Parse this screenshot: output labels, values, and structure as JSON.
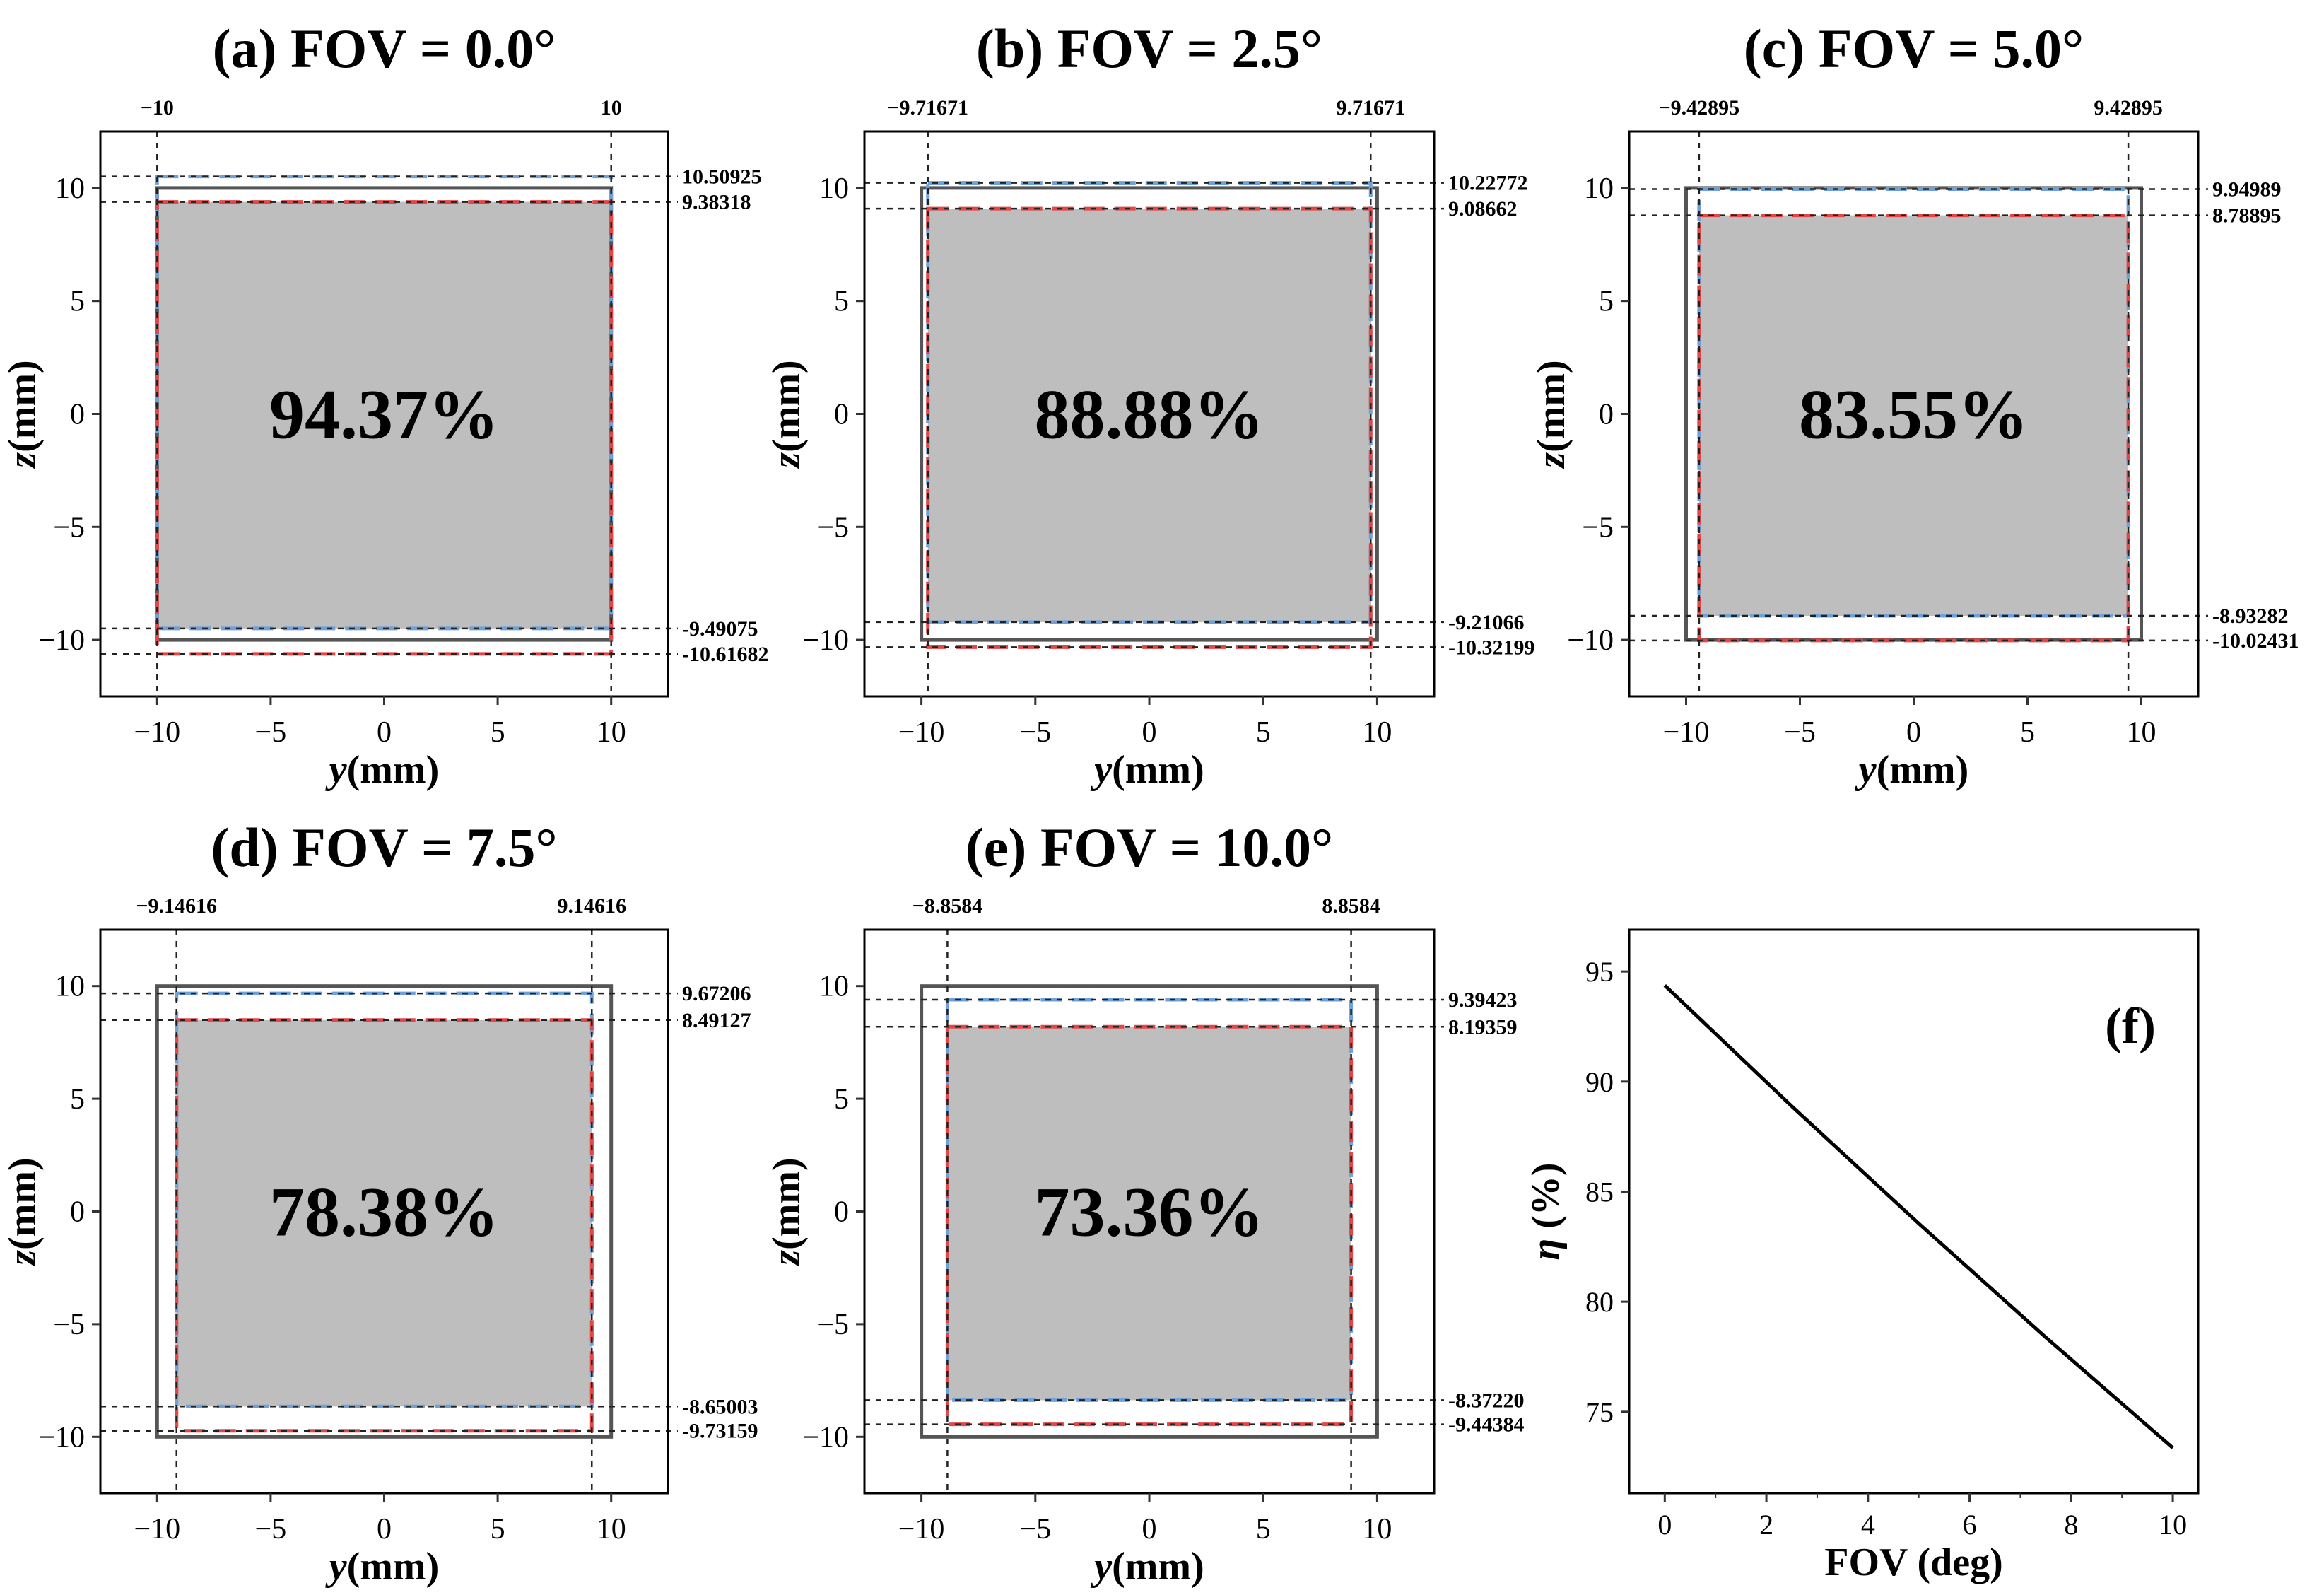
{
  "figure": {
    "tick_color": "#333333",
    "colors": {
      "frame": "#555555",
      "fill": "#bebebe",
      "blue": "#6fa0d8",
      "red": "#e04848",
      "guide": "#222222",
      "axis": "#000000"
    },
    "ytick_labels": [
      "−10",
      "−5",
      "0",
      "5",
      "10"
    ],
    "xtick_labels": [
      "−10",
      "−5",
      "0",
      "5",
      "10"
    ]
  },
  "chart_data": [
    {
      "id": "a",
      "type": "area",
      "title": "(a) FOV = 0.0°",
      "xlabel_italic": "y",
      "xlabel_unit": "(mm)",
      "ylabel_italic": "z",
      "ylabel_unit": "(mm)",
      "xlim": [
        -12.5,
        12.5
      ],
      "ylim": [
        -12.5,
        12.5
      ],
      "xticks": [
        -10,
        -5,
        0,
        5,
        10
      ],
      "yticks": [
        -10,
        -5,
        0,
        5,
        10
      ],
      "efficiency": "94.37%",
      "frame_square": [
        -10,
        10,
        -10,
        10
      ],
      "blue_rect": [
        -10,
        10,
        -9.49075,
        10.50925
      ],
      "red_rect": [
        -10,
        10,
        -10.61682,
        9.38318
      ],
      "vguides": [
        -10,
        10
      ],
      "vguide_labels": [
        "−10",
        "10"
      ],
      "hguides": [
        10.50925,
        9.38318,
        -9.49075,
        -10.61682
      ],
      "hguide_labels": [
        "10.50925",
        "9.38318",
        "-9.49075",
        "-10.61682"
      ]
    },
    {
      "id": "b",
      "type": "area",
      "title": "(b) FOV = 2.5°",
      "xlabel_italic": "y",
      "xlabel_unit": "(mm)",
      "ylabel_italic": "z",
      "ylabel_unit": "(mm)",
      "xlim": [
        -12.5,
        12.5
      ],
      "ylim": [
        -12.5,
        12.5
      ],
      "xticks": [
        -10,
        -5,
        0,
        5,
        10
      ],
      "yticks": [
        -10,
        -5,
        0,
        5,
        10
      ],
      "efficiency": "88.88%",
      "frame_square": [
        -10,
        10,
        -10,
        10
      ],
      "blue_rect": [
        -9.71671,
        9.71671,
        -9.21066,
        10.22772
      ],
      "red_rect": [
        -9.71671,
        9.71671,
        -10.32199,
        9.08662
      ],
      "vguides": [
        -9.71671,
        9.71671
      ],
      "vguide_labels": [
        "−9.71671",
        "9.71671"
      ],
      "hguides": [
        10.22772,
        9.08662,
        -9.21066,
        -10.32199
      ],
      "hguide_labels": [
        "10.22772",
        "9.08662",
        "-9.21066",
        "-10.32199"
      ]
    },
    {
      "id": "c",
      "type": "area",
      "title": "(c) FOV = 5.0°",
      "xlabel_italic": "y",
      "xlabel_unit": "(mm)",
      "ylabel_italic": "z",
      "ylabel_unit": "(mm)",
      "xlim": [
        -12.5,
        12.5
      ],
      "ylim": [
        -12.5,
        12.5
      ],
      "xticks": [
        -10,
        -5,
        0,
        5,
        10
      ],
      "yticks": [
        -10,
        -5,
        0,
        5,
        10
      ],
      "efficiency": "83.55%",
      "frame_square": [
        -10,
        10,
        -10,
        10
      ],
      "blue_rect": [
        -9.42895,
        9.42895,
        -8.93282,
        9.94989
      ],
      "red_rect": [
        -9.42895,
        9.42895,
        -10.02431,
        8.78895
      ],
      "vguides": [
        -9.42895,
        9.42895
      ],
      "vguide_labels": [
        "−9.42895",
        "9.42895"
      ],
      "hguides": [
        9.94989,
        8.78895,
        -8.93282,
        -10.02431
      ],
      "hguide_labels": [
        "9.94989",
        "8.78895",
        "-8.93282",
        "-10.02431"
      ]
    },
    {
      "id": "d",
      "type": "area",
      "title": "(d) FOV = 7.5°",
      "xlabel_italic": "y",
      "xlabel_unit": "(mm)",
      "ylabel_italic": "z",
      "ylabel_unit": "(mm)",
      "xlim": [
        -12.5,
        12.5
      ],
      "ylim": [
        -12.5,
        12.5
      ],
      "xticks": [
        -10,
        -5,
        0,
        5,
        10
      ],
      "yticks": [
        -10,
        -5,
        0,
        5,
        10
      ],
      "efficiency": "78.38%",
      "frame_square": [
        -10,
        10,
        -10,
        10
      ],
      "blue_rect": [
        -9.14616,
        9.14616,
        -8.65003,
        9.67206
      ],
      "red_rect": [
        -9.14616,
        9.14616,
        -9.73159,
        8.49127
      ],
      "vguides": [
        -9.14616,
        9.14616
      ],
      "vguide_labels": [
        "−9.14616",
        "9.14616"
      ],
      "hguides": [
        9.67206,
        8.49127,
        -8.65003,
        -9.73159
      ],
      "hguide_labels": [
        "9.67206",
        "8.49127",
        "-8.65003",
        "-9.73159"
      ]
    },
    {
      "id": "e",
      "type": "area",
      "title": "(e) FOV = 10.0°",
      "xlabel_italic": "y",
      "xlabel_unit": "(mm)",
      "ylabel_italic": "z",
      "ylabel_unit": "(mm)",
      "xlim": [
        -12.5,
        12.5
      ],
      "ylim": [
        -12.5,
        12.5
      ],
      "xticks": [
        -10,
        -5,
        0,
        5,
        10
      ],
      "yticks": [
        -10,
        -5,
        0,
        5,
        10
      ],
      "efficiency": "73.36%",
      "frame_square": [
        -10,
        10,
        -10,
        10
      ],
      "blue_rect": [
        -8.8584,
        8.8584,
        -8.3722,
        9.39423
      ],
      "red_rect": [
        -8.8584,
        8.8584,
        -9.44384,
        8.19359
      ],
      "vguides": [
        -8.8584,
        8.8584
      ],
      "vguide_labels": [
        "−8.8584",
        "8.8584"
      ],
      "hguides": [
        9.39423,
        8.19359,
        -8.3722,
        -9.44384
      ],
      "hguide_labels": [
        "9.39423",
        "8.19359",
        "-8.37220",
        "-9.44384"
      ]
    },
    {
      "id": "f",
      "type": "line",
      "title": "(f)",
      "xlabel": "FOV (deg)",
      "ylabel_italic": "η",
      "ylabel_unit": "(%)",
      "xlim": [
        -0.7,
        10.5
      ],
      "ylim": [
        71.3,
        96.9
      ],
      "xticks": [
        0,
        2,
        4,
        6,
        8,
        10
      ],
      "yticks": [
        75,
        80,
        85,
        90,
        95
      ],
      "xtick_labels": [
        "0",
        "2",
        "4",
        "6",
        "8",
        "10"
      ],
      "ytick_labels": [
        "75",
        "80",
        "85",
        "90",
        "95"
      ],
      "series": [
        {
          "name": "η",
          "x": [
            0,
            2.5,
            5.0,
            7.5,
            10.0
          ],
          "y": [
            94.37,
            88.88,
            83.55,
            78.38,
            73.36
          ]
        }
      ]
    }
  ]
}
